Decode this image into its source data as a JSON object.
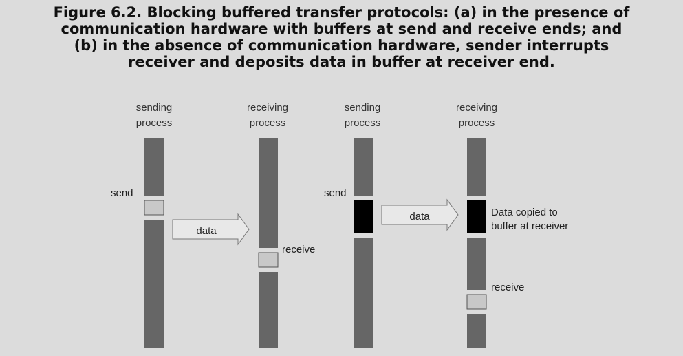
{
  "caption": {
    "line1": "Figure 6.2. Blocking buffered transfer protocols: (a) in the presence of",
    "line2": "communication hardware with buffers at send and receive ends; and",
    "line3": "(b) in the absence of communication hardware, sender interrupts",
    "line4": "receiver and deposits data in buffer at receiver end."
  },
  "diagram_a": {
    "sending_header_1": "sending",
    "sending_header_2": "process",
    "receiving_header_1": "receiving",
    "receiving_header_2": "process",
    "send_label": "send",
    "data_label": "data",
    "receive_label": "receive"
  },
  "diagram_b": {
    "sending_header_1": "sending",
    "sending_header_2": "process",
    "receiving_header_1": "receiving",
    "receiving_header_2": "process",
    "send_label": "send",
    "data_label": "data",
    "copied_label_1": "Data copied to",
    "copied_label_2": "buffer at receiver",
    "receive_label": "receive"
  },
  "colors": {
    "background": "#dcdcdc",
    "process_bar": "#666666",
    "buffer_light": "#c8c8c8",
    "buffer_dark": "#000000",
    "arrow_fill": "#e8e8e8"
  }
}
